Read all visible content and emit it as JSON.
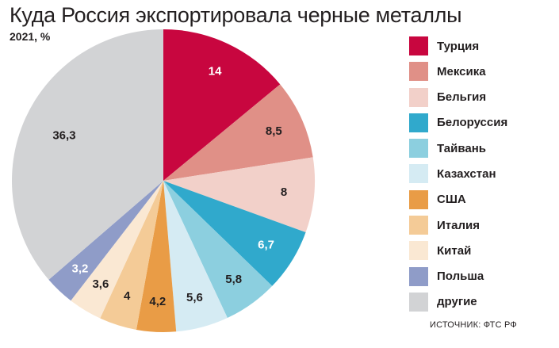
{
  "title": "Куда Россия экспортировала черные металлы",
  "subtitle": "2021, %",
  "source": "ИСТОЧНИК: ФТС РФ",
  "chart_data": {
    "type": "pie",
    "title": "Куда Россия экспортировала черные металлы",
    "subtitle": "2021, %",
    "legend_position": "right",
    "slices": [
      {
        "name": "Турция",
        "value": 14,
        "label": "14",
        "color": "#c8063f",
        "label_color": "#ffffff"
      },
      {
        "name": "Мексика",
        "value": 8.5,
        "label": "8,5",
        "color": "#e09087",
        "label_color": "#231f20"
      },
      {
        "name": "Бельгия",
        "value": 8,
        "label": "8",
        "color": "#f2d0c9",
        "label_color": "#231f20"
      },
      {
        "name": "Белоруссия",
        "value": 6.7,
        "label": "6,7",
        "color": "#30a9cc",
        "label_color": "#ffffff"
      },
      {
        "name": "Тайвань",
        "value": 5.8,
        "label": "5,8",
        "color": "#8ccfdf",
        "label_color": "#231f20"
      },
      {
        "name": "Казахстан",
        "value": 5.6,
        "label": "5,6",
        "color": "#d5ebf3",
        "label_color": "#231f20"
      },
      {
        "name": "США",
        "value": 4.2,
        "label": "4,2",
        "color": "#e99c46",
        "label_color": "#231f20"
      },
      {
        "name": "Италия",
        "value": 4,
        "label": "4",
        "color": "#f4cb97",
        "label_color": "#231f20"
      },
      {
        "name": "Китай",
        "value": 3.6,
        "label": "3,6",
        "color": "#fae8d3",
        "label_color": "#231f20"
      },
      {
        "name": "Польша",
        "value": 3.2,
        "label": "3,2",
        "color": "#8f9cc8",
        "label_color": "#ffffff"
      },
      {
        "name": "другие",
        "value": 36.3,
        "label": "36,3",
        "color": "#d2d3d5",
        "label_color": "#231f20"
      }
    ]
  }
}
